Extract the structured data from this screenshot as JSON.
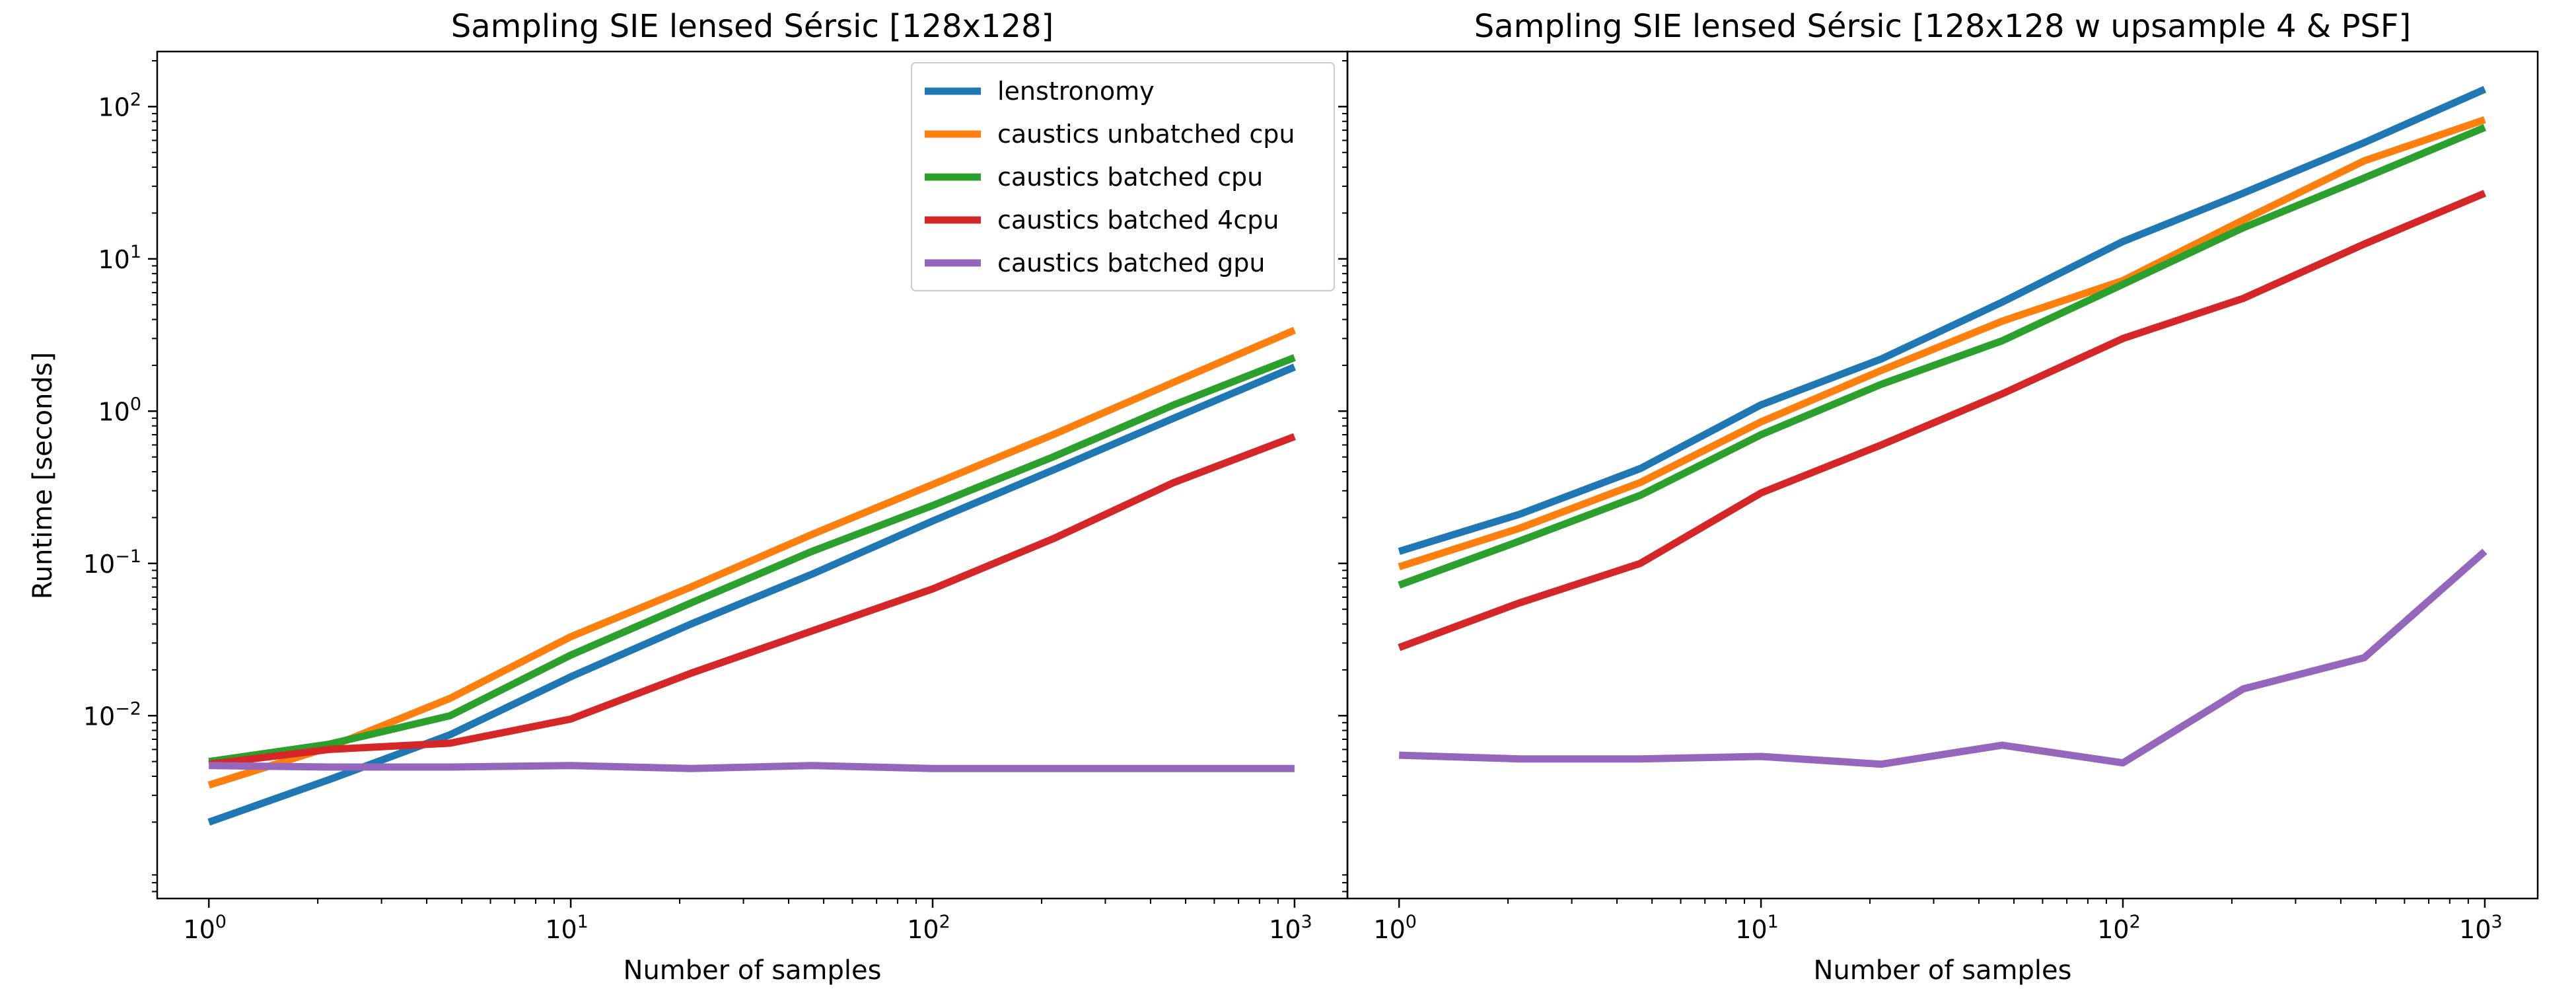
{
  "figure": {
    "ylabel": "Runtime [seconds]"
  },
  "series_styles": [
    {
      "name": "lenstronomy",
      "color": "#1f77b4"
    },
    {
      "name": "caustics unbatched cpu",
      "color": "#ff7f0e"
    },
    {
      "name": "caustics batched cpu",
      "color": "#2ca02c"
    },
    {
      "name": "caustics batched 4cpu",
      "color": "#d62728"
    },
    {
      "name": "caustics batched gpu",
      "color": "#9467bd"
    }
  ],
  "chart_data": [
    {
      "type": "line",
      "title": "Sampling SIE lensed Sérsic [128x128]",
      "xlabel": "Number of samples",
      "ylabel": "Runtime [seconds]",
      "xscale": "log",
      "yscale": "log",
      "xlim": [
        0.72,
        1400
      ],
      "ylim": [
        0.00063,
        230
      ],
      "x_ticks": [
        {
          "base": "10",
          "exp": "0"
        },
        {
          "base": "10",
          "exp": "1"
        },
        {
          "base": "10",
          "exp": "2"
        },
        {
          "base": "10",
          "exp": "3"
        }
      ],
      "y_ticks": [
        {
          "base": "10",
          "exp": "−2"
        },
        {
          "base": "10",
          "exp": "−1"
        },
        {
          "base": "10",
          "exp": "0"
        },
        {
          "base": "10",
          "exp": "1"
        },
        {
          "base": "10",
          "exp": "2"
        }
      ],
      "grid": false,
      "legend": "upper right",
      "x": [
        1,
        2.15,
        4.64,
        10,
        21.5,
        46.4,
        100,
        215,
        464,
        1000
      ],
      "series": [
        {
          "name": "lenstronomy",
          "values": [
            0.002,
            0.0038,
            0.0075,
            0.018,
            0.04,
            0.085,
            0.19,
            0.41,
            0.9,
            1.95
          ]
        },
        {
          "name": "caustics unbatched cpu",
          "values": [
            0.0035,
            0.0062,
            0.013,
            0.033,
            0.07,
            0.155,
            0.33,
            0.7,
            1.55,
            3.4
          ]
        },
        {
          "name": "caustics batched cpu",
          "values": [
            0.005,
            0.0065,
            0.01,
            0.025,
            0.055,
            0.12,
            0.24,
            0.5,
            1.1,
            2.25
          ]
        },
        {
          "name": "caustics batched 4cpu",
          "values": [
            0.0048,
            0.006,
            0.0066,
            0.0095,
            0.019,
            0.036,
            0.068,
            0.145,
            0.34,
            0.68
          ]
        },
        {
          "name": "caustics batched gpu",
          "values": [
            0.0047,
            0.0046,
            0.0046,
            0.0047,
            0.0045,
            0.0047,
            0.0045,
            0.0045,
            0.0045,
            0.0045
          ]
        }
      ]
    },
    {
      "type": "line",
      "title": "Sampling SIE lensed Sérsic [128x128 w upsample 4 & PSF]",
      "xlabel": "Number of samples",
      "xscale": "log",
      "yscale": "log",
      "xlim": [
        0.72,
        1400
      ],
      "ylim": [
        0.00063,
        230
      ],
      "x_ticks": [
        {
          "base": "10",
          "exp": "0"
        },
        {
          "base": "10",
          "exp": "1"
        },
        {
          "base": "10",
          "exp": "2"
        },
        {
          "base": "10",
          "exp": "3"
        }
      ],
      "grid": false,
      "x": [
        1,
        2.15,
        4.64,
        10,
        21.5,
        46.4,
        100,
        215,
        464,
        1000
      ],
      "series": [
        {
          "name": "lenstronomy",
          "values": [
            0.12,
            0.21,
            0.42,
            1.1,
            2.2,
            5.2,
            13,
            27,
            58,
            130
          ]
        },
        {
          "name": "caustics unbatched cpu",
          "values": [
            0.095,
            0.17,
            0.34,
            0.85,
            1.85,
            3.9,
            7.2,
            18,
            44,
            82
          ]
        },
        {
          "name": "caustics batched cpu",
          "values": [
            0.072,
            0.14,
            0.28,
            0.7,
            1.5,
            2.9,
            6.8,
            16,
            34,
            73
          ]
        },
        {
          "name": "caustics batched 4cpu",
          "values": [
            0.028,
            0.055,
            0.1,
            0.29,
            0.6,
            1.3,
            3,
            5.5,
            12.5,
            27
          ]
        },
        {
          "name": "caustics batched gpu",
          "values": [
            0.0055,
            0.0052,
            0.0052,
            0.0054,
            0.0048,
            0.0064,
            0.0049,
            0.015,
            0.024,
            0.12
          ]
        }
      ]
    }
  ]
}
